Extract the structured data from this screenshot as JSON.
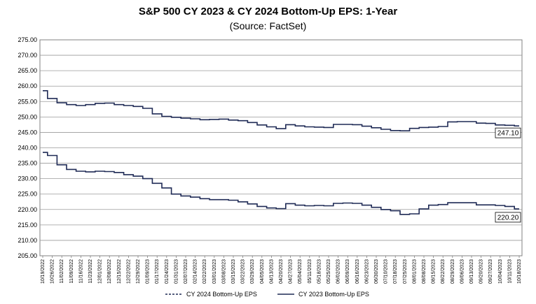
{
  "chart_data": {
    "type": "line",
    "title": "S&P 500 CY 2023 & CY 2024 Bottom-Up EPS: 1-Year",
    "subtitle": "(Source: FactSet)",
    "ylim": [
      205,
      275
    ],
    "yticks": [
      "205.00",
      "210.00",
      "215.00",
      "220.00",
      "225.00",
      "230.00",
      "235.00",
      "240.00",
      "245.00",
      "250.00",
      "255.00",
      "260.00",
      "265.00",
      "270.00",
      "275.00"
    ],
    "grid": true,
    "legend_position": "bottom",
    "x": [
      "10/19/2022",
      "10/26/2022",
      "11/02/2022",
      "11/09/2022",
      "11/16/2022",
      "11/23/2022",
      "12/01/2022",
      "12/08/2022",
      "12/15/2022",
      "12/22/2022",
      "12/29/2022",
      "01/09/2023",
      "01/17/2023",
      "01/24/2023",
      "01/31/2023",
      "02/07/2023",
      "02/14/2023",
      "02/22/2023",
      "03/01/2023",
      "03/08/2023",
      "03/15/2023",
      "03/22/2023",
      "03/29/2023",
      "04/05/2023",
      "04/13/2023",
      "04/20/2023",
      "04/27/2023",
      "05/04/2023",
      "05/11/2023",
      "05/18/2023",
      "05/25/2023",
      "06/02/2023",
      "06/09/2023",
      "06/16/2023",
      "06/23/2023",
      "06/30/2023",
      "07/10/2023",
      "07/18/2023",
      "07/25/2023",
      "08/01/2023",
      "08/08/2023",
      "08/15/2023",
      "08/22/2023",
      "08/29/2023",
      "09/06/2023",
      "09/13/2023",
      "09/20/2023",
      "09/27/2023",
      "10/04/2023",
      "10/11/2023",
      "10/18/2023"
    ],
    "series": [
      {
        "name": "CY 2024 Bottom-Up EPS",
        "style": "dashed",
        "color": "#1f2a55",
        "end_label": "247.10",
        "values": [
          258.5,
          256.0,
          254.6,
          254.0,
          253.7,
          254.0,
          254.4,
          254.5,
          254.0,
          253.7,
          253.4,
          252.8,
          251.0,
          250.2,
          249.9,
          249.6,
          249.4,
          249.1,
          249.2,
          249.3,
          249.0,
          248.8,
          248.2,
          247.4,
          246.8,
          246.2,
          247.5,
          247.1,
          246.8,
          246.7,
          246.6,
          247.6,
          247.6,
          247.5,
          247.0,
          246.5,
          246.0,
          245.6,
          245.5,
          246.3,
          246.6,
          246.7,
          246.9,
          248.4,
          248.5,
          248.5,
          248.0,
          247.9,
          247.4,
          247.3,
          247.1
        ]
      },
      {
        "name": "CY 2023 Bottom-Up EPS",
        "style": "solid",
        "color": "#1f2a55",
        "end_label": "220.20",
        "values": [
          238.5,
          237.5,
          234.5,
          233.0,
          232.4,
          232.2,
          232.4,
          232.3,
          232.0,
          231.3,
          230.8,
          230.0,
          228.5,
          227.0,
          225.0,
          224.4,
          224.0,
          223.5,
          223.2,
          223.2,
          223.0,
          222.5,
          221.8,
          221.0,
          220.5,
          220.3,
          221.9,
          221.4,
          221.2,
          221.3,
          221.2,
          222.0,
          222.1,
          222.0,
          221.4,
          220.7,
          220.0,
          219.6,
          218.4,
          218.6,
          220.2,
          221.4,
          221.6,
          222.2,
          222.2,
          222.2,
          221.5,
          221.5,
          221.3,
          221.0,
          220.2
        ]
      }
    ]
  }
}
